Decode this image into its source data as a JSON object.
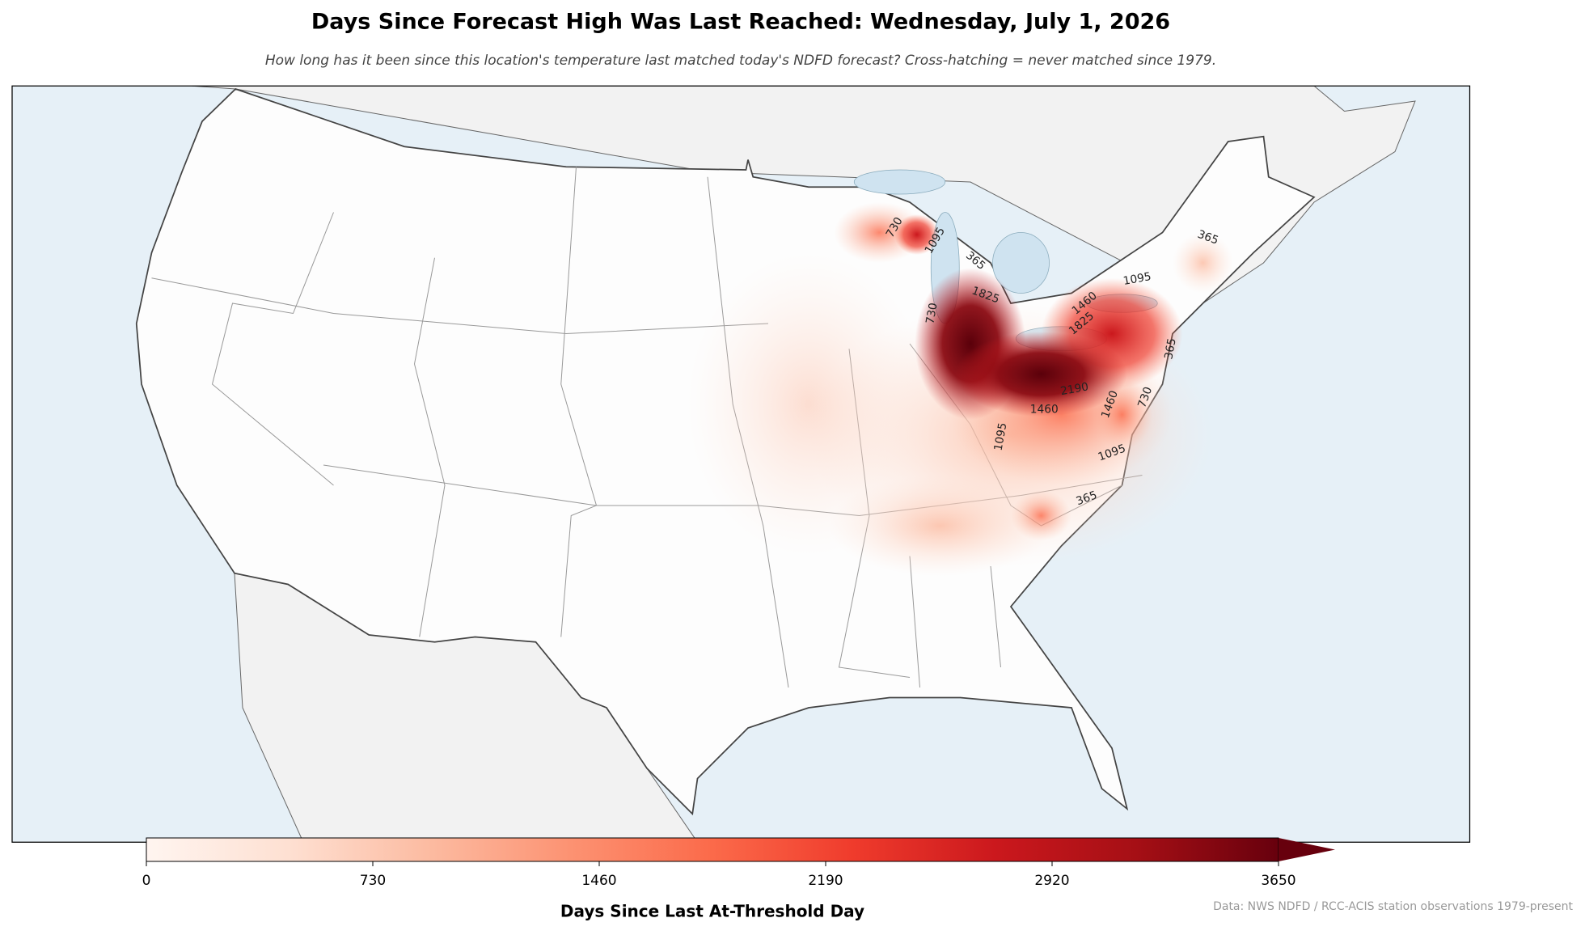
{
  "header": {
    "title": "Days Since Forecast High Was Last Reached: Wednesday, July 1, 2026",
    "subtitle": "How long has it been since this location's temperature last matched today's NDFD forecast? Cross-hatching = never matched since 1979."
  },
  "map": {
    "contour_labels": [
      "730",
      "1095",
      "365",
      "1825",
      "730",
      "1460",
      "1095",
      "365",
      "1825",
      "365",
      "2190",
      "1460",
      "1460",
      "1095",
      "1095",
      "365",
      "730"
    ]
  },
  "colorbar": {
    "label": "Days Since Last At-Threshold Day",
    "lim": [
      0,
      3650
    ],
    "ticks": [
      0,
      730,
      1460,
      2190,
      2920,
      3650
    ],
    "extend": "max",
    "colormap": [
      "#fff5f0",
      "#fee0d2",
      "#fcbba1",
      "#fc9272",
      "#fb6a4a",
      "#ef3b2c",
      "#cb181d",
      "#a50f15",
      "#67000d"
    ]
  },
  "footer": {
    "source": "Data: NWS NDFD / RCC-ACIS station observations 1979-present"
  }
}
